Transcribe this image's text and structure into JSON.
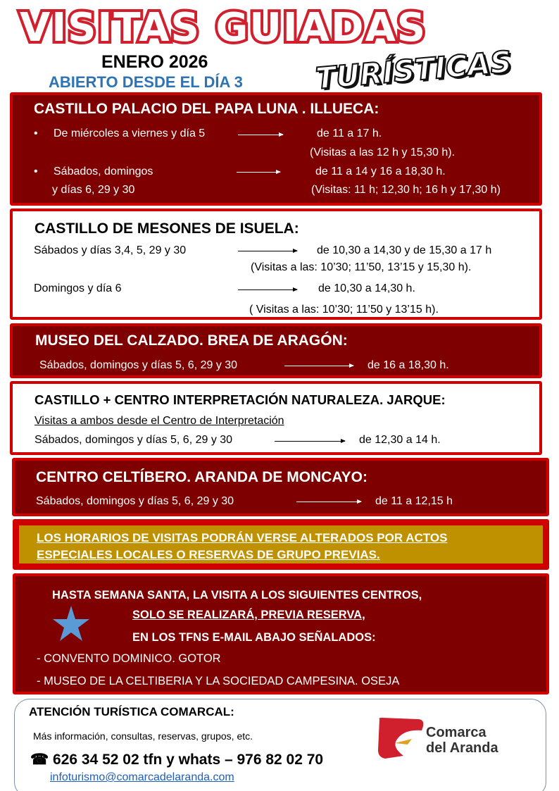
{
  "header": {
    "title": "VISITAS GUIADAS",
    "subtitle_script": "TURÍSTICAS",
    "month": "ENERO 2026",
    "open_from": "ABIERTO DESDE EL DÍA 3"
  },
  "colors": {
    "dark_red": "#7f0000",
    "border_red": "#d00000",
    "gold": "#bf9000",
    "blue_heading": "#2e74b5",
    "star_blue": "#5b9bd5"
  },
  "sections": [
    {
      "title": "CASTILLO PALACIO DEL PAPA LUNA .    ILLUECA:",
      "rows": [
        {
          "bullet": "•",
          "label": "De miércoles a viernes y día 5",
          "hours": "de 11 a 17 h.",
          "note": "(Visitas a las 12 h  y 15,30 h)."
        },
        {
          "bullet": "•",
          "label": "Sábados, domingos",
          "label2": "y días 6, 29 y 30",
          "hours": "de 11 a 14 y 16 a 18,30 h.",
          "note": "(Visitas: 11 h; 12,30 h; 16 h y 17,30 h)"
        }
      ]
    },
    {
      "title": "CASTILLO DE MESONES DE ISUELA:",
      "rows": [
        {
          "label": "Sábados y días 3,4, 5, 29 y 30",
          "hours": "de 10,30 a 14,30 y de 15,30 a 17 h",
          "note": "(Visitas a las: 10’30; 11’50, 13’15 y 15,30 h)."
        },
        {
          "label": "Domingos y día 6",
          "hours": "de 10,30 a 14,30 h.",
          "note": "( Visitas a las: 10’30; 11’50 y 13’15 h)."
        }
      ]
    },
    {
      "title": "MUSEO DEL CALZADO. BREA DE ARAGÓN:",
      "rows": [
        {
          "label": "Sábados, domingos y días  5, 6, 29 y 30",
          "hours": "de 16 a 18,30 h."
        }
      ]
    },
    {
      "title": "CASTILLO + CENTRO INTERPRETACIÓN NATURALEZA. JARQUE:",
      "subtitle": "Visitas a ambos desde el  Centro de Interpretación",
      "rows": [
        {
          "label": "Sábados, domingos y días 5, 6, 29 y 30",
          "hours": "de 12,30 a 14 h."
        }
      ]
    },
    {
      "title": "CENTRO CELTÍBERO. ARANDA DE MONCAYO:",
      "rows": [
        {
          "label": "Sábados, domingos y días  5, 6, 29 y 30",
          "hours": "de 11 a 12,15 h"
        }
      ]
    }
  ],
  "notice": {
    "line1": " LOS HORARIOS DE VISITAS PODRÁN VERSE ALTERADOS POR ACTOS",
    "line2": "ESPECIALES LOCALES O RESERVAS DE GRUPO PREVIAS."
  },
  "reservation": {
    "line1": "HASTA SEMANA SANTA,   LA VISITA A LOS SIGUIENTES CENTROS,",
    "line2": "SOLO SE REALIZARÁ,  PREVIA RESERVA",
    "line2_suffix": ",",
    "line3": "EN LOS TFNS E-MAIL ABAJO SEÑALADOS:",
    "items": [
      "- CONVENTO DOMINICO.  GOTOR",
      "- MUSEO DE LA CELTIBERIA Y LA SOCIEDAD CAMPESINA.  OSEJA"
    ],
    "icon": "star-icon"
  },
  "contact": {
    "title": "ATENCIÓN TURÍSTICA COMARCAL:",
    "info": "Más información, consultas, reservas,  grupos, etc.",
    "phone_icon": "☎",
    "phones": "626 34 52 02 tfn y whats – 976 82 02 70",
    "email": "infoturismo@comarcadelaranda.com",
    "logo_text": [
      "Comarca",
      "del Aranda"
    ]
  }
}
